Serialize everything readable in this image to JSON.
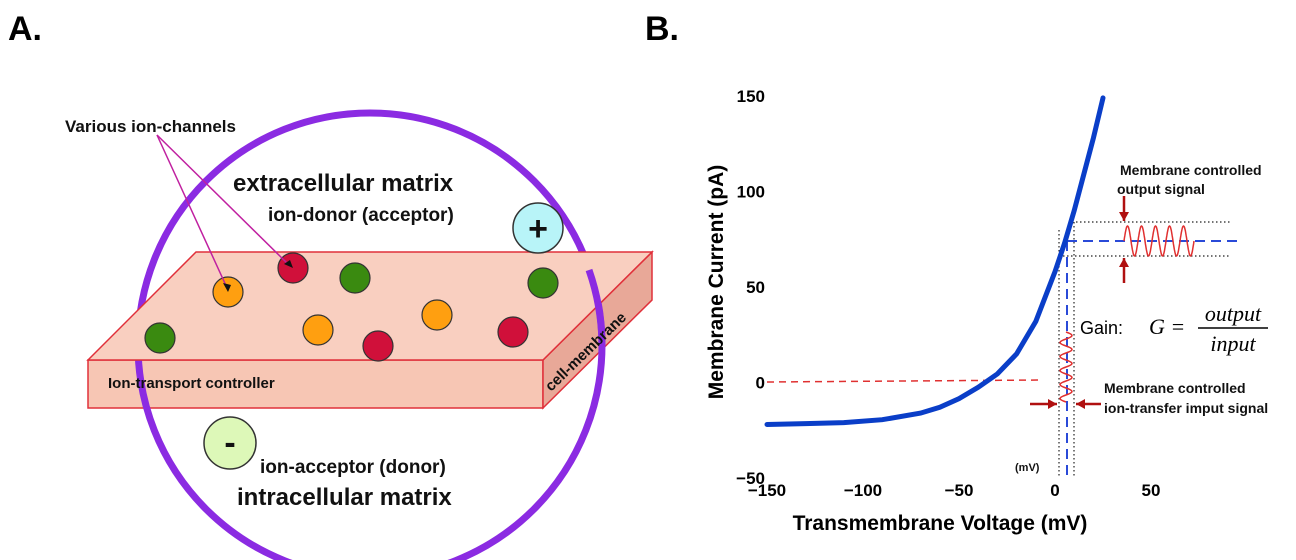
{
  "panel_a": {
    "label": "A.",
    "channels_label": "Various ion-channels",
    "extracellular": "extracellular matrix",
    "donor": "ion-donor (acceptor)",
    "plus_sign": "+",
    "minus_sign": "-",
    "membrane_label": "cell-membrane",
    "controller_label": "Ion-transport controller",
    "acceptor": "ion-acceptor (donor)",
    "intracellular": "intracellular matrix",
    "colors": {
      "circle": "#8b2be2",
      "membrane_fill": "#f9cfc0",
      "membrane_edge": "#e0303a",
      "orange": "#ff9f10",
      "red": "#d0103a",
      "green": "#3a8a10",
      "plus_fill": "#b8f4f8",
      "minus_fill": "#ddf8b8",
      "pointer": "#c020a0"
    }
  },
  "panel_b": {
    "label": "B.",
    "output_label_1": "Membrane controlled",
    "output_label_2": "output signal",
    "input_label_1": "Membrane controlled",
    "input_label_2": "ion-transfer imput signal",
    "gain_label": "Gain:",
    "gain_lhs": "G =",
    "gain_num": "output",
    "gain_den": "input",
    "mv_label": "(mV)",
    "colors": {
      "curve": "#0a3ec8",
      "signal": "#e03030",
      "arrow": "#b01010",
      "guide_blue": "#2a4ad8"
    }
  },
  "chart_data": {
    "type": "line",
    "title": "",
    "xlabel": "Transmembrane Voltage (mV)",
    "ylabel": "Membrane Current (pA)",
    "xlim": [
      -150,
      50
    ],
    "ylim": [
      -50,
      150
    ],
    "xticks": [
      -150,
      -100,
      -50,
      0,
      50
    ],
    "xtick_labels": [
      "−150",
      "−100",
      "−50",
      "0",
      "50"
    ],
    "yticks": [
      -50,
      0,
      50,
      100,
      150
    ],
    "ytick_labels": [
      "−50",
      "0",
      "50",
      "100",
      "150"
    ],
    "grid": false,
    "series": [
      {
        "x": [
          -150,
          -130,
          -110,
          -90,
          -70,
          -60,
          -50,
          -40,
          -30,
          -20,
          -10,
          0,
          5,
          10,
          15,
          20,
          25
        ],
        "y": [
          -22,
          -21.5,
          -21,
          -19.5,
          -16,
          -13,
          -8.5,
          -2.5,
          4.5,
          15,
          32,
          58,
          73,
          90,
          109,
          128,
          149
        ]
      }
    ]
  }
}
